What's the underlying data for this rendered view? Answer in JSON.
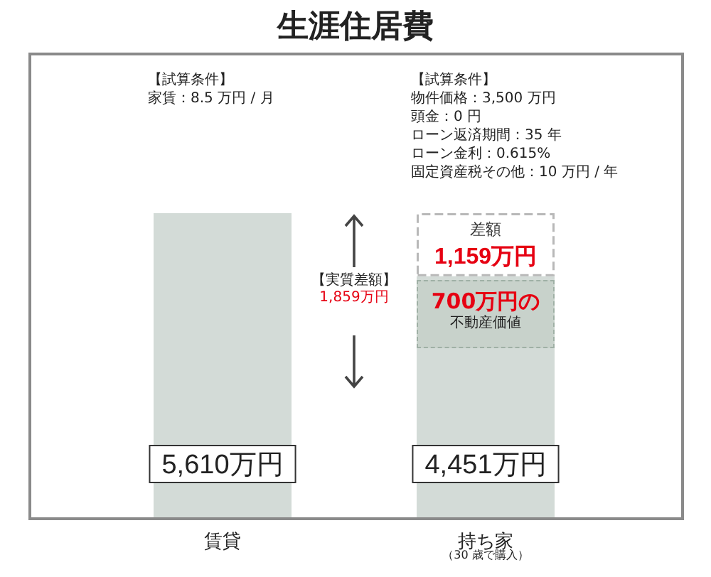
{
  "chart_data": {
    "type": "bar",
    "stacked": true,
    "title": "生涯住居費",
    "categories": [
      "賃貸",
      "持ち家"
    ],
    "series": [
      {
        "color": "#d3dbd7",
        "values": [
          5610,
          4451
        ],
        "value_labels": [
          "5,610万円",
          "4,451万円"
        ]
      },
      {
        "name": "差額",
        "color": "#ffffff",
        "values": [
          null,
          1159
        ],
        "value_labels": [
          null,
          "1,159万円"
        ]
      }
    ],
    "annotations": [
      "【試算条件】",
      "家賃：8.5 万円 / 月",
      "【試算条件】",
      "物件価格：3,500 万円",
      "頭金：0 円",
      "ローン返済期間：35 年",
      "ローン金利：0.615%",
      "固定資産税その他：10 万円 / 年",
      "【実質差額】",
      "1,859万円",
      "（30 歳で購入）",
      {
        "text": "700万円の",
        "x": "持ち家",
        "y": 4451
      },
      {
        "text": "不動産価値",
        "x": "持ち家",
        "y": 4451
      }
    ],
    "tick_labels": "x",
    "legend": false
  }
}
